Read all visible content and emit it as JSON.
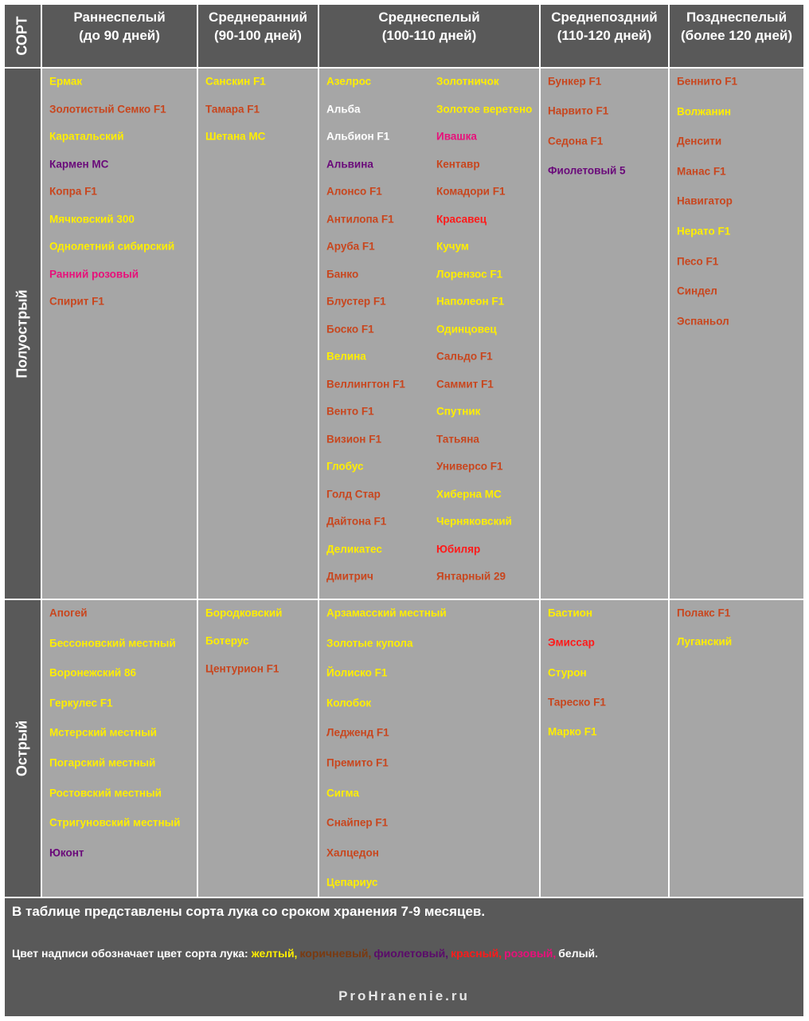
{
  "header": {
    "corner": "СОРТ",
    "columns": [
      [
        "Раннеспелый",
        "(до 90 дней)"
      ],
      [
        "Среднеранний",
        "(90-100 дней)"
      ],
      [
        "Среднеспелый",
        "(100-110 дней)"
      ],
      [
        "Среднепоздний",
        "(110-120 дней)"
      ],
      [
        "Позднеспелый",
        "(более 120 дней)"
      ]
    ]
  },
  "rows": [
    {
      "label": "Полуострый",
      "cells": [
        [
          [
            {
              "text": "Ермак",
              "color": "#ffee00"
            },
            {
              "text": "Золотистый Семко F1",
              "color": "#c8461e"
            },
            {
              "text": "Каратальский",
              "color": "#ffee00"
            },
            {
              "text": "Кармен МС",
              "color": "#6a0a7a"
            },
            {
              "text": "Копра F1",
              "color": "#c8461e"
            },
            {
              "text": "Мячковский 300",
              "color": "#ffee00"
            },
            {
              "text": "Однолетний сибирский",
              "color": "#ffee00"
            },
            {
              "text": "Ранний розовый",
              "color": "#e8107a"
            },
            {
              "text": "Спирит F1",
              "color": "#c8461e"
            }
          ]
        ],
        [
          [
            {
              "text": "Санскин F1",
              "color": "#ffee00"
            },
            {
              "text": "Тамара F1",
              "color": "#c8461e"
            },
            {
              "text": "Шетана МС",
              "color": "#ffee00"
            }
          ]
        ],
        [
          [
            {
              "text": "Азелрос",
              "color": "#ffee00"
            },
            {
              "text": "Альба",
              "color": "#ffffff"
            },
            {
              "text": "Альбион F1",
              "color": "#ffffff"
            },
            {
              "text": "Альвина",
              "color": "#6a0a7a"
            },
            {
              "text": "Алонсо F1",
              "color": "#c8461e"
            },
            {
              "text": "Антилопа F1",
              "color": "#c8461e"
            },
            {
              "text": "Аруба F1",
              "color": "#c8461e"
            },
            {
              "text": "Банко",
              "color": "#c8461e"
            },
            {
              "text": "Блустер F1",
              "color": "#c8461e"
            },
            {
              "text": "Боско F1",
              "color": "#c8461e"
            },
            {
              "text": "Велина",
              "color": "#ffee00"
            },
            {
              "text": "Веллингтон F1",
              "color": "#c8461e"
            },
            {
              "text": "Венто F1",
              "color": "#c8461e"
            },
            {
              "text": "Визион F1",
              "color": "#c8461e"
            },
            {
              "text": "Глобус",
              "color": "#ffee00"
            },
            {
              "text": "Голд Стар",
              "color": "#c8461e"
            },
            {
              "text": "Дайтона F1",
              "color": "#c8461e"
            },
            {
              "text": "Деликатес",
              "color": "#ffee00"
            },
            {
              "text": "Дмитрич",
              "color": "#c8461e"
            }
          ],
          [
            {
              "text": "Золотничок",
              "color": "#ffee00"
            },
            {
              "text": "Золотое веретено",
              "color": "#ffee00"
            },
            {
              "text": "Ивашка",
              "color": "#e8107a"
            },
            {
              "text": "Кентавр",
              "color": "#c8461e"
            },
            {
              "text": "Комадори F1",
              "color": "#c8461e"
            },
            {
              "text": "Красавец",
              "color": "#ff1a1a"
            },
            {
              "text": "Кучум",
              "color": "#ffee00"
            },
            {
              "text": "Лорензос F1",
              "color": "#ffee00"
            },
            {
              "text": "Наполеон F1",
              "color": "#ffee00"
            },
            {
              "text": "Одинцовец",
              "color": "#ffee00"
            },
            {
              "text": "Сальдо F1",
              "color": "#c8461e"
            },
            {
              "text": "Саммит F1",
              "color": "#c8461e"
            },
            {
              "text": "Спутник",
              "color": "#ffee00"
            },
            {
              "text": "Татьяна",
              "color": "#c8461e"
            },
            {
              "text": "Универсо F1",
              "color": "#c8461e"
            },
            {
              "text": "Хиберна МС",
              "color": "#ffee00"
            },
            {
              "text": "Черняковский",
              "color": "#ffee00"
            },
            {
              "text": "Юбиляр",
              "color": "#ff1a1a"
            },
            {
              "text": "Янтарный 29",
              "color": "#c8461e"
            }
          ]
        ],
        [
          [
            {
              "text": "Бункер F1",
              "color": "#c8461e"
            },
            {
              "text": "Нарвито F1",
              "color": "#c8461e"
            },
            {
              "text": "Седона F1",
              "color": "#c8461e"
            },
            {
              "text": "Фиолетовый 5",
              "color": "#6a0a7a"
            }
          ]
        ],
        [
          [
            {
              "text": "Беннито F1",
              "color": "#c8461e"
            },
            {
              "text": "Волжанин",
              "color": "#ffee00"
            },
            {
              "text": "Денсити",
              "color": "#c8461e"
            },
            {
              "text": "Манас F1",
              "color": "#c8461e"
            },
            {
              "text": "Навигатор",
              "color": "#c8461e"
            },
            {
              "text": "Нерато F1",
              "color": "#ffee00"
            },
            {
              "text": "Песо F1",
              "color": "#c8461e"
            },
            {
              "text": "Синдел",
              "color": "#c8461e"
            },
            {
              "text": "Эспаньол",
              "color": "#c8461e"
            }
          ]
        ]
      ]
    },
    {
      "label": "Острый",
      "cells": [
        [
          [
            {
              "text": "Апогей",
              "color": "#c8461e"
            },
            {
              "text": "Бессоновский местный",
              "color": "#ffee00"
            },
            {
              "text": "Воронежский 86",
              "color": "#ffee00"
            },
            {
              "text": "Геркулес F1",
              "color": "#ffee00"
            },
            {
              "text": "Мстерский местный",
              "color": "#ffee00"
            },
            {
              "text": "Погарский местный",
              "color": "#ffee00"
            },
            {
              "text": "Ростовский местный",
              "color": "#ffee00"
            },
            {
              "text": "Стригуновский местный",
              "color": "#ffee00"
            },
            {
              "text": "Юконт",
              "color": "#6a0a7a"
            }
          ]
        ],
        [
          [
            {
              "text": "Бородковский",
              "color": "#ffee00"
            },
            {
              "text": "Ботерус",
              "color": "#ffee00"
            },
            {
              "text": "Центурион F1",
              "color": "#c8461e"
            }
          ]
        ],
        [
          [
            {
              "text": "Арзамасский местный",
              "color": "#ffee00"
            },
            {
              "text": "Золотые купола",
              "color": "#ffee00"
            },
            {
              "text": "Йолиско F1",
              "color": "#ffee00"
            },
            {
              "text": "Колобок",
              "color": "#ffee00"
            },
            {
              "text": "Ледженд F1",
              "color": "#c8461e"
            },
            {
              "text": "Премито F1",
              "color": "#c8461e"
            },
            {
              "text": "Сигма",
              "color": "#ffee00"
            },
            {
              "text": "Снайпер F1",
              "color": "#c8461e"
            },
            {
              "text": "Халцедон",
              "color": "#c8461e"
            },
            {
              "text": "Цепариус",
              "color": "#ffee00"
            }
          ]
        ],
        [
          [
            {
              "text": "Бастион",
              "color": "#ffee00"
            },
            {
              "text": "Эмиссар",
              "color": "#ff1a1a"
            },
            {
              "text": "Стурон",
              "color": "#ffee00"
            },
            {
              "text": "Тареско F1",
              "color": "#c8461e"
            },
            {
              "text": "Марко F1",
              "color": "#ffee00"
            }
          ]
        ],
        [
          [
            {
              "text": "Полакс F1",
              "color": "#c8461e"
            },
            {
              "text": "Луганский",
              "color": "#ffee00"
            }
          ]
        ]
      ]
    }
  ],
  "footer": {
    "note": "В таблице представлены сорта лука со сроком хранения 7-9 месяцев.",
    "legend_intro": "Цвет надписи обозначает цвет сорта лука:",
    "legend_items": [
      {
        "text": "желтый,",
        "color": "#ffee00"
      },
      {
        "text": "коричневый,",
        "color": "#7a3a10"
      },
      {
        "text": "фиолетовый,",
        "color": "#5a0a6a"
      },
      {
        "text": "красный,",
        "color": "#ff1a1a"
      },
      {
        "text": "розовый,",
        "color": "#e8107a"
      },
      {
        "text": "белый.",
        "color": "#ffffff"
      }
    ],
    "site": "ProHranenie.ru"
  }
}
